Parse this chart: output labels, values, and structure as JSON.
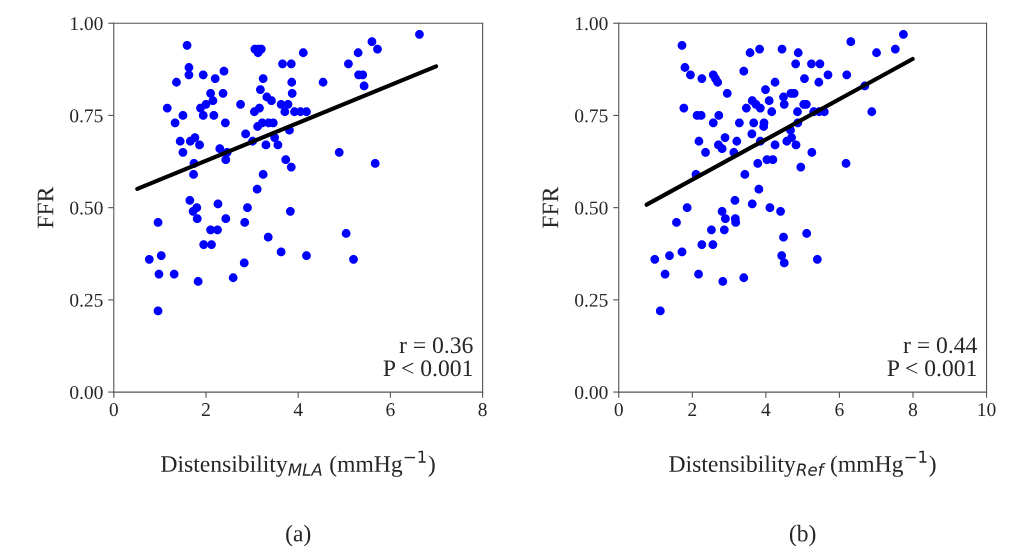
{
  "chart_data": [
    {
      "type": "scatter",
      "xlabel": "Distensibility$_{MLA}$ (mmHg$^{−1}$)",
      "ylabel": "FFR",
      "annotations": [
        "r = 0.36\nP < 0.001",
        "(a)"
      ],
      "xlim": [
        0,
        8
      ],
      "xticks": [
        0,
        2,
        4,
        6,
        8
      ],
      "ylim": [
        0,
        1
      ],
      "yticks": [
        {
          "value": 0,
          "label": "0.00"
        },
        {
          "value": 0.25,
          "label": "0.25"
        },
        {
          "value": 0.5,
          "label": "0.50"
        },
        {
          "value": 0.75,
          "label": "0.75"
        },
        {
          "value": 1,
          "label": "1.00"
        }
      ],
      "grid": false,
      "legend": false,
      "marker": "circle",
      "series": [
        {
          "color": "#0000ff",
          "x": [
            1.59,
            1.63,
            1.63,
            1.36,
            1.16,
            1.33,
            1.5,
            1.44,
            1.5,
            1.66,
            1.76,
            1.86,
            1.74,
            1.73,
            1.94,
            2.2,
            2.39,
            2.1,
            2.15,
            2.0,
            1.88,
            1.94,
            2.17,
            2.37,
            2.42,
            2.3,
            2.46,
            2.43,
            2.75,
            2.86,
            3.01,
            3.06,
            3.14,
            3.2,
            3.13,
            3.24,
            3.18,
            3.32,
            3.42,
            3.05,
            3.16,
            3.12,
            3.22,
            3.36,
            3.46,
            3.49,
            3.3,
            3.56,
            3.63,
            3.78,
            3.71,
            3.66,
            3.85,
            3.86,
            3.87,
            3.92,
            4.05,
            4.18,
            4.11,
            3.81,
            3.73,
            3.85,
            3.24,
            3.11,
            4.54,
            5.09,
            5.3,
            5.6,
            5.72,
            5.31,
            5.4,
            5.43,
            6.63,
            4.89,
            5.67,
            1.65,
            1.72,
            1.8,
            1.81,
            2.26,
            2.43,
            2.1,
            2.25,
            1.95,
            2.12,
            0.96,
            0.77,
            1.03,
            0.98,
            1.31,
            0.96,
            1.83,
            2.59,
            2.83,
            2.84,
            2.9,
            3.35,
            3.63,
            3.83,
            4.18,
            5.04,
            5.2
          ],
          "values": [
            0.94,
            0.88,
            0.86,
            0.84,
            0.77,
            0.73,
            0.75,
            0.68,
            0.65,
            0.68,
            0.69,
            0.67,
            0.62,
            0.59,
            0.86,
            0.85,
            0.87,
            0.81,
            0.79,
            0.78,
            0.77,
            0.75,
            0.75,
            0.81,
            0.73,
            0.66,
            0.65,
            0.63,
            0.78,
            0.7,
            0.68,
            0.93,
            0.93,
            0.93,
            0.92,
            0.85,
            0.82,
            0.8,
            0.79,
            0.76,
            0.77,
            0.72,
            0.73,
            0.73,
            0.73,
            0.69,
            0.67,
            0.67,
            0.78,
            0.78,
            0.76,
            0.89,
            0.89,
            0.84,
            0.81,
            0.76,
            0.76,
            0.76,
            0.92,
            0.71,
            0.63,
            0.61,
            0.59,
            0.55,
            0.84,
            0.89,
            0.92,
            0.95,
            0.93,
            0.86,
            0.86,
            0.83,
            0.97,
            0.65,
            0.62,
            0.52,
            0.49,
            0.5,
            0.47,
            0.51,
            0.47,
            0.44,
            0.44,
            0.4,
            0.4,
            0.46,
            0.36,
            0.37,
            0.32,
            0.32,
            0.22,
            0.3,
            0.31,
            0.35,
            0.46,
            0.5,
            0.42,
            0.38,
            0.49,
            0.37,
            0.43,
            0.36
          ]
        },
        {
          "type": "line",
          "color": "#000000",
          "marker": "none",
          "x": [
            0.51,
            6.99
          ],
          "values": [
            0.551,
            0.883
          ]
        }
      ]
    },
    {
      "type": "scatter",
      "xlabel": "Distensibility$_{Ref}$ (mmHg$^{−1}$)",
      "ylabel": "FFR",
      "annotations": [
        "r = 0.44\nP < 0.001",
        "(b)"
      ],
      "xlim": [
        0,
        10
      ],
      "xticks": [
        0,
        2,
        4,
        6,
        8,
        10
      ],
      "ylim": [
        0,
        1
      ],
      "yticks": [
        {
          "value": 0,
          "label": "0.00"
        },
        {
          "value": 0.25,
          "label": "0.25"
        },
        {
          "value": 0.5,
          "label": "0.50"
        },
        {
          "value": 0.75,
          "label": "0.75"
        },
        {
          "value": 1,
          "label": "1.00"
        }
      ],
      "grid": false,
      "legend": false,
      "marker": "circle",
      "series": [
        {
          "color": "#0000ff",
          "x": [
            1.72,
            1.8,
            1.95,
            2.26,
            2.57,
            2.63,
            2.69,
            2.95,
            3.4,
            3.57,
            3.83,
            4.44,
            4.88,
            4.81,
            5.24,
            5.47,
            5.69,
            5.05,
            5.44,
            4.25,
            3.99,
            6.2,
            6.31,
            6.69,
            7.01,
            7.52,
            7.74,
            6.88,
            6.18,
            1.77,
            2.13,
            2.24,
            2.72,
            2.57,
            3.28,
            3.47,
            3.63,
            3.73,
            3.85,
            4.09,
            4.16,
            4.48,
            4.5,
            4.68,
            4.77,
            4.86,
            5.03,
            5.1,
            5.3,
            5.45,
            5.59,
            3.67,
            3.95,
            3.94,
            3.62,
            3.85,
            4.67,
            4.7,
            4.57,
            4.87,
            4.82,
            4.25,
            5.25,
            4.95,
            4.03,
            4.19,
            3.78,
            3.43,
            3.81,
            2.18,
            2.36,
            2.71,
            2.81,
            2.89,
            3.21,
            3.13,
            2.1,
            3.16,
            3.63,
            4.11,
            4.4,
            1.86,
            1.57,
            2.81,
            2.9,
            3.17,
            3.18,
            2.52,
            2.87,
            2.26,
            2.56,
            1.72,
            0.98,
            1.38,
            1.26,
            2.17,
            2.83,
            3.4,
            4.48,
            5.11,
            4.43,
            4.5,
            5.4,
            1.13
          ],
          "values": [
            0.94,
            0.88,
            0.86,
            0.85,
            0.86,
            0.85,
            0.84,
            0.81,
            0.87,
            0.92,
            0.93,
            0.93,
            0.92,
            0.89,
            0.89,
            0.89,
            0.86,
            0.85,
            0.84,
            0.84,
            0.82,
            0.86,
            0.95,
            0.83,
            0.92,
            0.93,
            0.97,
            0.76,
            0.62,
            0.77,
            0.75,
            0.75,
            0.75,
            0.73,
            0.73,
            0.77,
            0.79,
            0.78,
            0.77,
            0.79,
            0.76,
            0.8,
            0.78,
            0.81,
            0.81,
            0.76,
            0.78,
            0.78,
            0.76,
            0.76,
            0.76,
            0.73,
            0.73,
            0.72,
            0.7,
            0.68,
            0.71,
            0.69,
            0.68,
            0.73,
            0.67,
            0.67,
            0.65,
            0.61,
            0.63,
            0.63,
            0.62,
            0.59,
            0.55,
            0.68,
            0.65,
            0.67,
            0.66,
            0.69,
            0.68,
            0.65,
            0.59,
            0.52,
            0.51,
            0.5,
            0.49,
            0.5,
            0.46,
            0.49,
            0.47,
            0.47,
            0.46,
            0.44,
            0.44,
            0.4,
            0.4,
            0.38,
            0.36,
            0.37,
            0.32,
            0.32,
            0.3,
            0.31,
            0.42,
            0.43,
            0.37,
            0.35,
            0.36,
            0.22
          ]
        },
        {
          "type": "line",
          "color": "#000000",
          "marker": "none",
          "x": [
            0.76,
            7.99
          ],
          "values": [
            0.508,
            0.903
          ]
        }
      ]
    }
  ]
}
